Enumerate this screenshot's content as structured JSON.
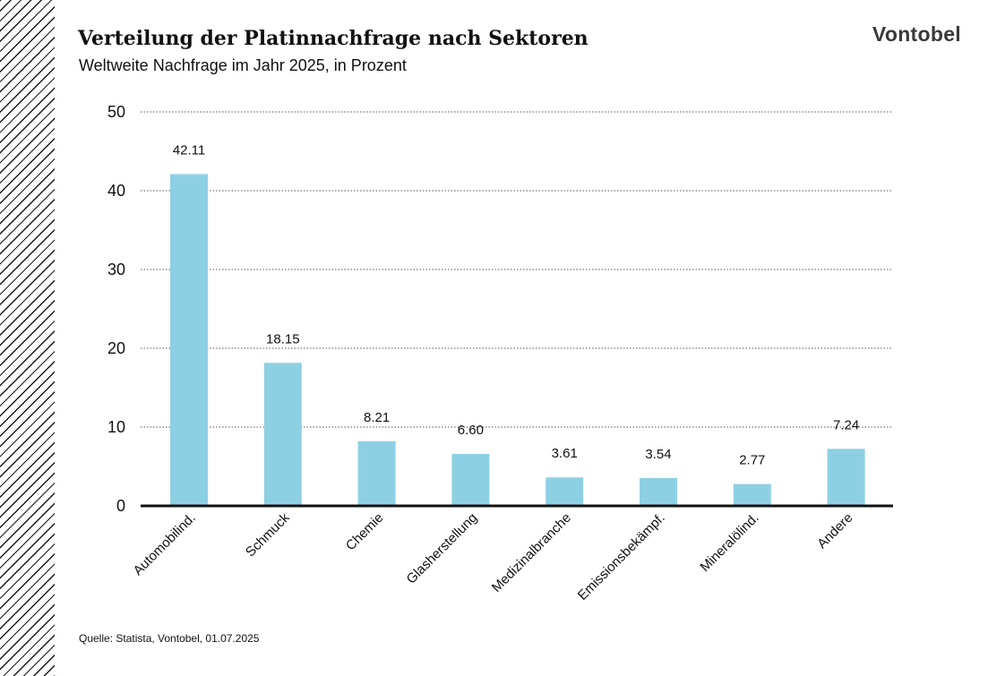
{
  "header": {
    "title": "Verteilung der Platinnachfrage nach Sektoren",
    "subtitle": "Weltweite Nachfrage im Jahr 2025, in Prozent",
    "logo": "Vontobel"
  },
  "footer": {
    "source": "Quelle: Statista, Vontobel, 01.07.2025"
  },
  "chart_data": {
    "type": "bar",
    "title": "Verteilung der Platinnachfrage nach Sektoren",
    "subtitle": "Weltweite Nachfrage im Jahr 2025, in Prozent",
    "categories": [
      "Automobilind.",
      "Schmuck",
      "Chemie",
      "Glasherstellung",
      "Medizinalbranche",
      "Emissionsbekämpf.",
      "Mineralölind.",
      "Andere"
    ],
    "values": [
      42.11,
      18.15,
      8.21,
      6.6,
      3.61,
      3.54,
      2.77,
      7.24
    ],
    "value_labels": [
      "42.11",
      "18.15",
      "8.21",
      "6.60",
      "3.61",
      "3.54",
      "2.77",
      "7.24"
    ],
    "yticks": [
      "0",
      "10",
      "20",
      "30",
      "40",
      "50"
    ],
    "ylim": [
      0,
      50
    ],
    "grid": true,
    "grid_style": "dotted",
    "bar_color": "#8ed0e3",
    "axis_color": "#111111",
    "grid_color": "#555555"
  }
}
